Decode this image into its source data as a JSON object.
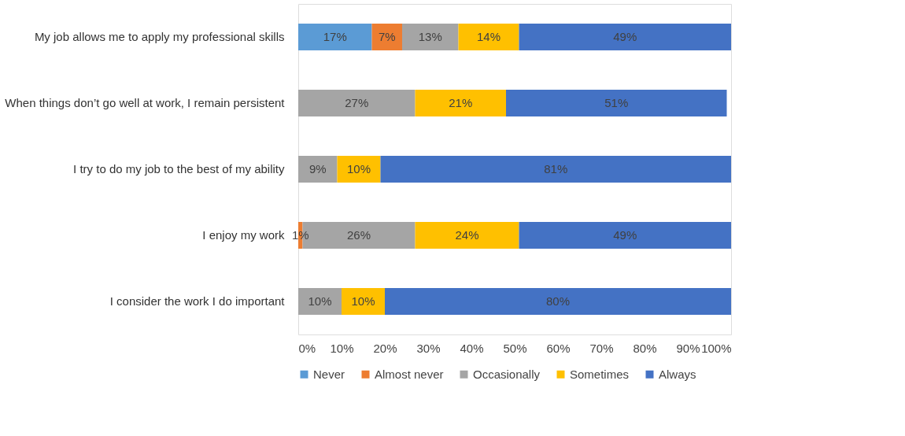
{
  "chart_data": {
    "type": "bar",
    "orientation": "horizontal",
    "stacked": true,
    "categories": [
      "My job allows me to apply my professional skills",
      "When things don’t go well at work, I remain persistent",
      "I try to do my job to the best of my ability",
      "I enjoy my work",
      "I consider the work I do important"
    ],
    "series": [
      {
        "name": "Never",
        "color": "#5b9bd5",
        "values": [
          17,
          null,
          null,
          null,
          null
        ],
        "value_labels": [
          "17%",
          null,
          null,
          null,
          null
        ]
      },
      {
        "name": "Almost never",
        "color": "#ed7d31",
        "values": [
          7,
          null,
          null,
          1,
          null
        ],
        "value_labels": [
          "7%",
          null,
          null,
          "1%",
          null
        ]
      },
      {
        "name": "Occasionally",
        "color": "#a5a5a5",
        "values": [
          13,
          27,
          9,
          26,
          10
        ],
        "value_labels": [
          "13%",
          "27%",
          "9%",
          "26%",
          "10%"
        ]
      },
      {
        "name": "Sometimes",
        "color": "#ffc000",
        "values": [
          14,
          21,
          10,
          24,
          10
        ],
        "value_labels": [
          "14%",
          "21%",
          "10%",
          "24%",
          "10%"
        ]
      },
      {
        "name": "Always",
        "color": "#4472c4",
        "values": [
          49,
          51,
          81,
          49,
          80
        ],
        "value_labels": [
          "49%",
          "51%",
          "81%",
          "49%",
          "80%"
        ]
      }
    ],
    "xlim": [
      0,
      100
    ],
    "xticks": [
      {
        "value": 0,
        "label": "0%"
      },
      {
        "value": 10,
        "label": "10%"
      },
      {
        "value": 20,
        "label": "20%"
      },
      {
        "value": 30,
        "label": "30%"
      },
      {
        "value": 40,
        "label": "40%"
      },
      {
        "value": 50,
        "label": "50%"
      },
      {
        "value": 60,
        "label": "60%"
      },
      {
        "value": 70,
        "label": "70%"
      },
      {
        "value": 80,
        "label": "80%"
      },
      {
        "value": 90,
        "label": "90%"
      },
      {
        "value": 100,
        "label": "100%"
      }
    ],
    "grid": false,
    "legend": "bottom"
  }
}
